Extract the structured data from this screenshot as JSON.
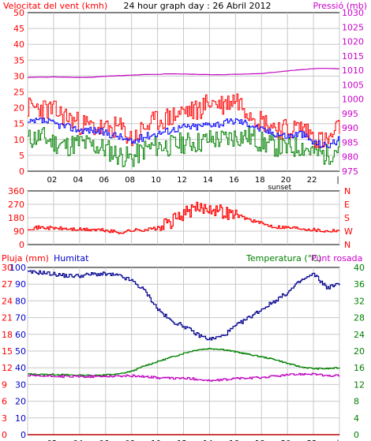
{
  "header": {
    "left_title": "Velocitat del vent (kmh)",
    "center_title": "24 hour graph day : 26 Abril 2012",
    "right_title": "Pressió (mb)"
  },
  "colors": {
    "frame": "#000000",
    "grid": "#c8c8c8",
    "gust": "#ff0000",
    "wind": "#0000ff",
    "wind_low": "#008000",
    "pressure": "#c000c0",
    "direction": "#ff0000",
    "humidity": "#000090",
    "temperature": "#008000",
    "dewpoint": "#c000c0",
    "rain": "#c00000",
    "label_red": "#ff0000",
    "label_blue": "#0000cc",
    "label_green": "#008000",
    "label_magenta": "#cc00cc"
  },
  "x_ticks": [
    "02",
    "04",
    "06",
    "08",
    "10",
    "12",
    "14",
    "16",
    "18",
    "20",
    "22",
    "|"
  ],
  "sunset_label": "sunset",
  "chart_data": [
    {
      "type": "line",
      "title": "24 hour graph day : 26 Abril 2012",
      "ylabel": "Velocitat del vent (kmh)",
      "y2label": "Pressió (mb)",
      "ylim": [
        0,
        50
      ],
      "y_ticks": [
        "0",
        "5",
        "10",
        "15",
        "20",
        "25",
        "30",
        "35",
        "40",
        "45",
        "50"
      ],
      "y2lim": [
        975,
        1030
      ],
      "y2_ticks": [
        "975",
        "980",
        "985",
        "990",
        "995",
        "1000",
        "1005",
        "1010",
        "1015",
        "1020",
        "1025",
        "1030"
      ],
      "x": [
        0,
        1,
        2,
        3,
        4,
        5,
        6,
        7,
        8,
        9,
        10,
        11,
        12,
        13,
        14,
        15,
        16,
        17,
        18,
        19,
        20,
        21,
        22,
        23,
        24
      ],
      "series": [
        {
          "key": "gust",
          "values": [
            20,
            20,
            19,
            17,
            15,
            14,
            13,
            14,
            10,
            14,
            16,
            17,
            19,
            19,
            22,
            21,
            23,
            19,
            16,
            14,
            13,
            14,
            11,
            9,
            14
          ]
        },
        {
          "key": "wind",
          "values": [
            15,
            16,
            15,
            14,
            13,
            13,
            12,
            11,
            9,
            11,
            12,
            13,
            14,
            14,
            15,
            15,
            16,
            15,
            13,
            12,
            11,
            12,
            9,
            8,
            10
          ]
        },
        {
          "key": "wind_low",
          "values": [
            10,
            11,
            9,
            8,
            9,
            8,
            7,
            5,
            4,
            7,
            8,
            8,
            9,
            9,
            10,
            10,
            11,
            11,
            9,
            8,
            7,
            8,
            6,
            5,
            8
          ]
        },
        {
          "key": "pressure",
          "values": [
            1007.5,
            1007.6,
            1007.7,
            1007.6,
            1007.5,
            1007.6,
            1007.9,
            1008.1,
            1008.3,
            1008.5,
            1008.6,
            1008.8,
            1008.7,
            1008.6,
            1008.5,
            1008.5,
            1008.6,
            1008.7,
            1008.9,
            1009.3,
            1009.8,
            1010.2,
            1010.6,
            1010.7,
            1010.5
          ]
        }
      ]
    },
    {
      "type": "line",
      "ylabel": "Direcció",
      "ylim": [
        0,
        360
      ],
      "y_ticks": [
        "0",
        "90",
        "180",
        "270",
        "360"
      ],
      "y_right_labels": [
        "N",
        "W",
        "S",
        "E",
        "N"
      ],
      "x": [
        0,
        1,
        2,
        3,
        4,
        5,
        6,
        7,
        8,
        9,
        10,
        11,
        12,
        13,
        14,
        15,
        16,
        17,
        18,
        19,
        20,
        21,
        22,
        23,
        24
      ],
      "series": [
        {
          "key": "direction",
          "values": [
            110,
            115,
            110,
            105,
            100,
            100,
            95,
            80,
            95,
            100,
            110,
            150,
            210,
            240,
            250,
            220,
            200,
            170,
            140,
            120,
            115,
            110,
            100,
            90,
            100
          ]
        }
      ]
    },
    {
      "type": "line",
      "ylabel": "Pluja (mm)",
      "ylim": [
        0,
        30
      ],
      "y_ticks": [
        "0",
        "3",
        "6",
        "9",
        "12",
        "15",
        "18",
        "21",
        "24",
        "27",
        "30"
      ],
      "y2label": "Humitat",
      "y2lim": [
        0,
        100
      ],
      "y2_ticks": [
        "0",
        "10",
        "20",
        "30",
        "40",
        "50",
        "60",
        "70",
        "80",
        "90",
        "100"
      ],
      "y3label": "Temperatura (°C)",
      "y3lim": [
        0,
        40
      ],
      "y3_ticks": [
        "0",
        "4",
        "8",
        "12",
        "16",
        "20",
        "24",
        "28",
        "32",
        "36",
        "40"
      ],
      "y4label": "Punt rosada",
      "x": [
        0,
        1,
        2,
        3,
        4,
        5,
        6,
        7,
        8,
        9,
        10,
        11,
        12,
        13,
        14,
        15,
        16,
        17,
        18,
        19,
        20,
        21,
        22,
        23,
        24
      ],
      "series": [
        {
          "key": "humidity",
          "values": [
            97,
            97,
            96,
            95,
            95,
            96,
            96,
            95,
            92,
            86,
            75,
            68,
            65,
            60,
            57,
            59,
            65,
            70,
            75,
            80,
            85,
            92,
            96,
            88,
            90
          ]
        },
        {
          "key": "temperature",
          "values": [
            14.5,
            14.4,
            14.4,
            14.3,
            14.2,
            14.2,
            14.3,
            14.5,
            15.2,
            16.5,
            17.5,
            18.5,
            19.5,
            20.3,
            20.6,
            20.4,
            19.8,
            19.2,
            18.6,
            18.0,
            17.0,
            16.2,
            15.8,
            15.8,
            16.0
          ]
        },
        {
          "key": "dewpoint",
          "values": [
            14.1,
            14.0,
            14.0,
            13.9,
            13.9,
            13.9,
            14.0,
            14.0,
            14.1,
            13.9,
            13.6,
            13.5,
            13.5,
            13.3,
            12.9,
            13.1,
            13.5,
            13.5,
            13.7,
            14.0,
            14.3,
            14.5,
            14.6,
            14.0,
            14.2
          ]
        },
        {
          "key": "rain",
          "values": [
            0,
            0,
            0,
            0,
            0,
            0,
            0,
            0,
            0,
            0,
            0,
            0,
            0,
            0,
            0,
            0,
            0,
            0,
            0,
            0,
            0,
            0,
            0,
            0,
            0
          ]
        }
      ]
    }
  ],
  "panel3_labels": {
    "rain": "Pluja (mm)",
    "humidity": "Humitat",
    "temperature": "Temperatura (°C)",
    "dewpoint": "Punt rosada"
  }
}
